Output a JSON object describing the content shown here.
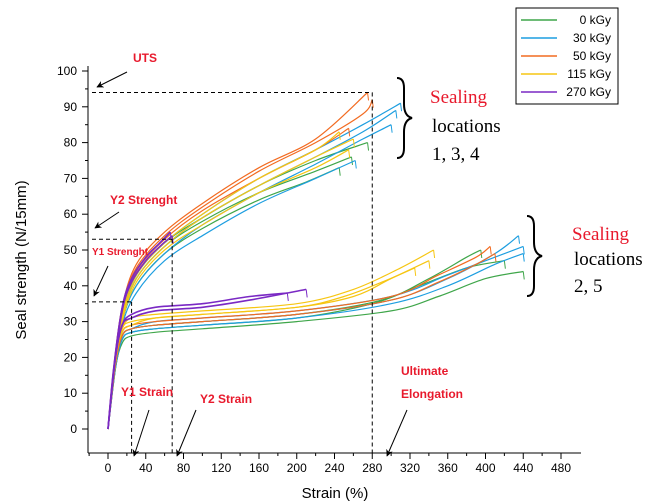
{
  "chart_data": {
    "type": "line",
    "xlabel": "Strain (%)",
    "ylabel": "Seal strength (N/15mm)",
    "xlim": [
      -12,
      480
    ],
    "ylim": [
      -4,
      100
    ],
    "xticks": [
      0,
      40,
      80,
      120,
      160,
      200,
      240,
      280,
      320,
      360,
      400,
      440,
      480
    ],
    "yticks": [
      0,
      10,
      20,
      30,
      40,
      50,
      60,
      70,
      80,
      90,
      100
    ],
    "legend": {
      "position": "top-right",
      "entries": [
        {
          "name": "0 kGy",
          "color": "#3fa64a"
        },
        {
          "name": "30 kGy",
          "color": "#1d9ee0"
        },
        {
          "name": "50 kGy",
          "color": "#f26b21"
        },
        {
          "name": "115 kGy",
          "color": "#f6c613"
        },
        {
          "name": "270 kGy",
          "color": "#7a29c4"
        }
      ]
    },
    "curve_groups": [
      {
        "sealing_locations": "1, 3, 4",
        "curves": [
          {
            "series": "0 kGy",
            "x": [
              0,
              6,
              15,
              30,
              60,
              100,
              160,
              210,
              245
            ],
            "y": [
              0,
              15,
              30,
              40,
              49,
              56,
              64,
              69,
              73
            ]
          },
          {
            "series": "0 kGy",
            "x": [
              0,
              6,
              15,
              30,
              60,
              100,
              160,
              220,
              258
            ],
            "y": [
              0,
              16,
              31,
              42,
              51,
              58,
              66,
              72,
              76
            ]
          },
          {
            "series": "0 kGy",
            "x": [
              0,
              6,
              15,
              30,
              60,
              100,
              160,
              220,
              275
            ],
            "y": [
              0,
              16,
              32,
              43,
              52,
              59,
              68,
              75,
              80
            ]
          },
          {
            "series": "30 kGy",
            "x": [
              0,
              6,
              15,
              30,
              60,
              100,
              160,
              220,
              270,
              300
            ],
            "y": [
              0,
              15,
              30,
              40,
              49,
              57,
              66,
              74,
              81,
              85
            ]
          },
          {
            "series": "30 kGy",
            "x": [
              0,
              6,
              15,
              30,
              60,
              100,
              160,
              220,
              270,
              305
            ],
            "y": [
              0,
              16,
              31,
              42,
              51,
              59,
              68,
              76,
              83,
              89
            ]
          },
          {
            "series": "30 kGy",
            "x": [
              0,
              6,
              15,
              30,
              60,
              100,
              160,
              220,
              270,
              310
            ],
            "y": [
              0,
              16,
              32,
              43,
              52,
              60,
              70,
              78,
              85,
              91
            ]
          },
          {
            "series": "30 kGy",
            "x": [
              0,
              6,
              15,
              30,
              60,
              100,
              160,
              220,
              262
            ],
            "y": [
              0,
              15,
              29,
              38,
              47,
              54,
              63,
              70,
              75
            ]
          },
          {
            "series": "50 kGy",
            "x": [
              0,
              6,
              15,
              30,
              60,
              100,
              160,
              220,
              255
            ],
            "y": [
              0,
              17,
              33,
              44,
              53,
              61,
              70,
              78,
              84
            ]
          },
          {
            "series": "50 kGy",
            "x": [
              0,
              6,
              15,
              30,
              60,
              100,
              160,
              220,
              270,
              280
            ],
            "y": [
              0,
              17,
              34,
              45,
              54,
              62,
              72,
              80,
              88,
              92
            ]
          },
          {
            "series": "50 kGy",
            "x": [
              0,
              6,
              15,
              30,
              60,
              100,
              160,
              220,
              275
            ],
            "y": [
              0,
              17,
              34,
              46,
              55,
              63,
              73,
              81,
              94
            ]
          },
          {
            "series": "115 kGy",
            "x": [
              0,
              6,
              15,
              30,
              60,
              100,
              160,
              220,
              245
            ],
            "y": [
              0,
              16,
              32,
              43,
              52,
              60,
              70,
              78,
              83
            ]
          },
          {
            "series": "115 kGy",
            "x": [
              0,
              6,
              15,
              30,
              60,
              100,
              160,
              220,
              260
            ],
            "y": [
              0,
              16,
              31,
              42,
              51,
              59,
              68,
              76,
              81
            ]
          },
          {
            "series": "115 kGy",
            "x": [
              0,
              6,
              15,
              30,
              60,
              100,
              160,
              220,
              255
            ],
            "y": [
              0,
              15,
              30,
              41,
              50,
              57,
              66,
              73,
              78
            ]
          },
          {
            "series": "270 kGy",
            "x": [
              0,
              6,
              15,
              25,
              40,
              55,
              66
            ],
            "y": [
              0,
              17,
              34,
              42,
              48,
              52,
              55
            ]
          },
          {
            "series": "270 kGy",
            "x": [
              0,
              6,
              15,
              25,
              40,
              55,
              68
            ],
            "y": [
              0,
              16,
              33,
              41,
              47,
              51,
              54
            ]
          }
        ]
      },
      {
        "sealing_locations": "2, 5",
        "curves": [
          {
            "series": "0 kGy",
            "x": [
              0,
              8,
              15,
              25,
              50,
              100,
              200,
              300,
              350,
              400,
              440
            ],
            "y": [
              0,
              17,
              24,
              26,
              27,
              28,
              30,
              33,
              37,
              42,
              44
            ]
          },
          {
            "series": "0 kGy",
            "x": [
              0,
              8,
              15,
              25,
              50,
              100,
              200,
              280,
              330,
              380,
              420
            ],
            "y": [
              0,
              17,
              25,
              27,
              28,
              29,
              31,
              35,
              40,
              45,
              47
            ]
          },
          {
            "series": "0 kGy",
            "x": [
              0,
              8,
              15,
              25,
              50,
              100,
              200,
              290,
              340,
              380,
              395
            ],
            "y": [
              0,
              18,
              26,
              28,
              29,
              30,
              32,
              36,
              42,
              48,
              50
            ]
          },
          {
            "series": "30 kGy",
            "x": [
              0,
              8,
              15,
              25,
              50,
              100,
              200,
              300,
              360,
              410,
              440
            ],
            "y": [
              0,
              17,
              25,
              27,
              28,
              29,
              31,
              35,
              40,
              46,
              49
            ]
          },
          {
            "series": "30 kGy",
            "x": [
              0,
              8,
              15,
              25,
              50,
              100,
              200,
              300,
              360,
              410,
              435
            ],
            "y": [
              0,
              18,
              26,
              28,
              29,
              30,
              32,
              36,
              42,
              49,
              54
            ]
          },
          {
            "series": "30 kGy",
            "x": [
              0,
              8,
              15,
              25,
              50,
              100,
              200,
              300,
              360,
              410,
              440
            ],
            "y": [
              0,
              18,
              26,
              28,
              30,
              31,
              33,
              37,
              43,
              48,
              51
            ]
          },
          {
            "series": "50 kGy",
            "x": [
              0,
              8,
              15,
              25,
              50,
              100,
              200,
              300,
              350,
              390,
              405
            ],
            "y": [
              0,
              18,
              27,
              29,
              30,
              31,
              33,
              37,
              43,
              48,
              51
            ]
          },
          {
            "series": "50 kGy",
            "x": [
              0,
              8,
              15,
              25,
              50,
              100,
              200,
              300,
              350,
              390,
              410
            ],
            "y": [
              0,
              18,
              26,
              28,
              29,
              30,
              32,
              36,
              41,
              46,
              49
            ]
          },
          {
            "series": "115 kGy",
            "x": [
              0,
              8,
              15,
              25,
              50,
              100,
              200,
              260,
              300,
              340
            ],
            "y": [
              0,
              19,
              27,
              29,
              31,
              32,
              34,
              37,
              42,
              47
            ]
          },
          {
            "series": "115 kGy",
            "x": [
              0,
              8,
              15,
              25,
              50,
              100,
              200,
              260,
              310,
              345
            ],
            "y": [
              0,
              19,
              28,
              31,
              32,
              33,
              35,
              39,
              45,
              50
            ]
          },
          {
            "series": "115 kGy",
            "x": [
              0,
              8,
              15,
              25,
              50,
              100,
              200,
              250,
              290,
              325
            ],
            "y": [
              0,
              19,
              28,
              30,
              31,
              32,
              34,
              37,
              41,
              45
            ]
          },
          {
            "series": "270 kGy",
            "x": [
              0,
              8,
              15,
              25,
              50,
              100,
              150,
              190
            ],
            "y": [
              0,
              20,
              29,
              32,
              34,
              35,
              37,
              38
            ]
          },
          {
            "series": "270 kGy",
            "x": [
              0,
              8,
              15,
              25,
              50,
              100,
              150,
              210
            ],
            "y": [
              0,
              20,
              29,
              31,
              33,
              34,
              36,
              39
            ]
          }
        ]
      }
    ],
    "reference_lines": [
      {
        "label": "UTS",
        "x": 280,
        "y": 94
      },
      {
        "label": "Y2 Strenght",
        "x": 68,
        "y": 53
      },
      {
        "label": "Y1 Strenght",
        "x": 25,
        "y": 35.5
      }
    ],
    "annotations": {
      "uts": "UTS",
      "y2_strength": "Y2 Strenght",
      "y1_strength": "Y1 Strenght",
      "y1_strain": "Y1 Strain",
      "y2_strain": "Y2 Strain",
      "ultimate_line1": "Ultimate",
      "ultimate_line2": "Elongation"
    },
    "sealing_labels": [
      {
        "word": "Sealing",
        "line2": "locations",
        "line3": "1, 3, 4"
      },
      {
        "word": "Sealing",
        "line2": "locations",
        "line3": "2, 5"
      }
    ]
  }
}
